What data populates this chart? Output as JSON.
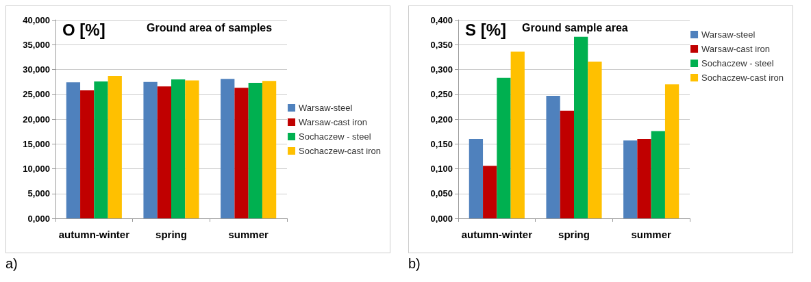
{
  "chart_data": [
    {
      "type": "bar",
      "title": "Ground area of samples",
      "ylabel": "O [%]",
      "annotations": [
        "a)"
      ],
      "categories": [
        "autumn-winter",
        "spring",
        "summer"
      ],
      "series": [
        {
          "name": "Warsaw-steel",
          "color": "#4f81bd",
          "values": [
            27.4,
            27.5,
            28.1
          ]
        },
        {
          "name": "Warsaw-cast iron",
          "color": "#c00000",
          "values": [
            25.8,
            26.6,
            26.3
          ]
        },
        {
          "name": "Sochaczew - steel",
          "color": "#00b050",
          "values": [
            27.6,
            28.0,
            27.3
          ]
        },
        {
          "name": "Sochaczew-cast iron",
          "color": "#ffc000",
          "values": [
            28.7,
            27.8,
            27.7
          ]
        }
      ],
      "ylim": [
        0,
        40
      ],
      "yticks": [
        {
          "value": 0,
          "label": "0,000"
        },
        {
          "value": 5,
          "label": "5,000"
        },
        {
          "value": 10,
          "label": "10,000"
        },
        {
          "value": 15,
          "label": "15,000"
        },
        {
          "value": 20,
          "label": "20,000"
        },
        {
          "value": 25,
          "label": "25,000"
        },
        {
          "value": 30,
          "label": "30,000"
        },
        {
          "value": 35,
          "label": "35,000"
        },
        {
          "value": 40,
          "label": "40,000"
        }
      ],
      "grid": "y",
      "legend": "right"
    },
    {
      "type": "bar",
      "title": "Ground sample area",
      "ylabel": "S [%]",
      "annotations": [
        "b)"
      ],
      "categories": [
        "autumn-winter",
        "spring",
        "summer"
      ],
      "series": [
        {
          "name": "Warsaw-steel",
          "color": "#4f81bd",
          "values": [
            0.16,
            0.247,
            0.157
          ]
        },
        {
          "name": "Warsaw-cast iron",
          "color": "#c00000",
          "values": [
            0.106,
            0.217,
            0.16
          ]
        },
        {
          "name": "Sochaczew - steel",
          "color": "#00b050",
          "values": [
            0.283,
            0.366,
            0.176
          ]
        },
        {
          "name": "Sochaczew-cast iron",
          "color": "#ffc000",
          "values": [
            0.336,
            0.316,
            0.27
          ]
        }
      ],
      "ylim": [
        0,
        0.4
      ],
      "yticks": [
        {
          "value": 0,
          "label": "0,000"
        },
        {
          "value": 0.05,
          "label": "0,050"
        },
        {
          "value": 0.1,
          "label": "0,100"
        },
        {
          "value": 0.15,
          "label": "0,150"
        },
        {
          "value": 0.2,
          "label": "0,200"
        },
        {
          "value": 0.25,
          "label": "0,250"
        },
        {
          "value": 0.3,
          "label": "0,300"
        },
        {
          "value": 0.35,
          "label": "0,350"
        },
        {
          "value": 0.4,
          "label": "0,400"
        }
      ],
      "grid": "y",
      "legend": "top right"
    }
  ]
}
